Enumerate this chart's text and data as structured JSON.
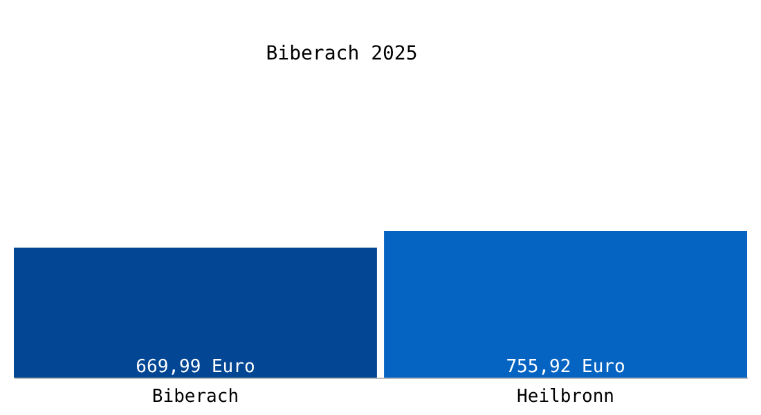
{
  "chart_data": {
    "type": "bar",
    "title": "Biberach 2025",
    "categories": [
      "Biberach",
      "Heilbronn"
    ],
    "values": [
      669.99,
      755.92
    ],
    "colors": [
      "#034694",
      "#0563c1"
    ],
    "value_labels": [
      "669,99 Euro",
      "755,92 Euro"
    ]
  }
}
